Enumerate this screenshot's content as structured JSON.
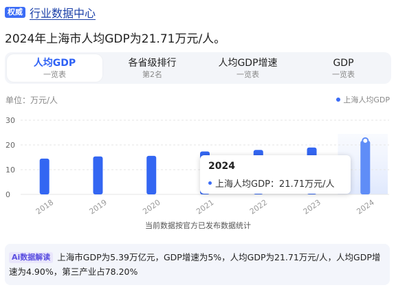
{
  "header": {
    "badge": "权威",
    "title": "行业数据中心"
  },
  "headline": "2024年上海市人均GDP为21.71万元/人。",
  "tabs": [
    {
      "title": "人均GDP",
      "sub": "一览表",
      "active": true
    },
    {
      "title": "各省级排行",
      "sub": "第2名",
      "active": false
    },
    {
      "title": "人均GDP增速",
      "sub": "一览表",
      "active": false
    },
    {
      "title": "GDP",
      "sub": "一览表",
      "active": false
    }
  ],
  "unit_label": "单位：万元/人",
  "colors": {
    "bar": "#3366f2",
    "bar_highlight": "#5f8df7",
    "accent": "#2f62f5"
  },
  "chart_data": {
    "type": "bar",
    "categories": [
      "2018",
      "2019",
      "2020",
      "2021",
      "2022",
      "2023",
      "2024"
    ],
    "series": [
      {
        "name": "上海人均GDP",
        "values": [
          14.49,
          15.34,
          15.58,
          17.36,
          17.99,
          18.97,
          21.71
        ]
      }
    ],
    "yticks": [
      0,
      10,
      20,
      30
    ],
    "ylim": [
      0,
      30
    ],
    "highlight_index": 6,
    "legend_position": "top-right"
  },
  "tooltip": {
    "title": "2024",
    "label": "上海人均GDP：21.71万元/人"
  },
  "source_note": "当前数据按官方已发布数据统计",
  "ai_summary": {
    "tag": "Ai数据解读",
    "text": "上海市GDP为5.39万亿元，GDP增速为5%，人均GDP为21.71万元/人，人均GDP增速为4.90%，第三产业占78.20%"
  }
}
